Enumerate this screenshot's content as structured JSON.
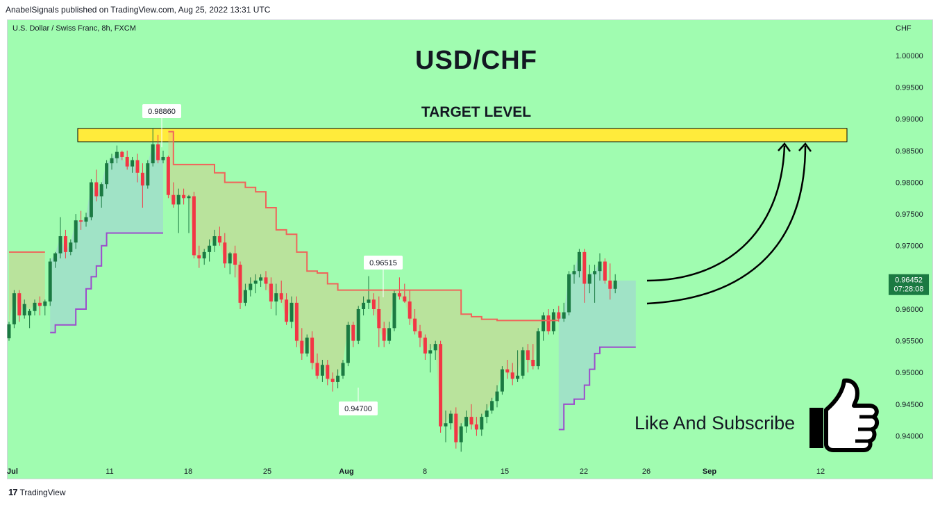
{
  "header": {
    "publisher_line": "AnabelSignals published on TradingView.com, Aug 25, 2022 13:31 UTC"
  },
  "symbol_line": "U.S. Dollar / Swiss Franc, 8h, FXCM",
  "currency": "CHF",
  "footer": {
    "brand": "TradingView"
  },
  "annotations": {
    "like_subscribe": "Like And Subscribe",
    "thumbs_icon": "thumbs-up-icon",
    "high_callout": "0.98860",
    "mid_callout": "0.96515",
    "low_callout": "0.94700"
  },
  "colors": {
    "up": "#1b7a42",
    "down": "#f23645",
    "background": "#a0fcb0",
    "target_zone": "#ffeb3b",
    "upper_line": "#f0645a",
    "lower_line": "#9c4dcc"
  },
  "chart_data": {
    "type": "candlestick",
    "title": "USD/CHF",
    "subtitle": "TARGET LEVEL",
    "yrange": [
      0.936,
      1.0035
    ],
    "yticks": [
      "1.00000",
      "0.99500",
      "0.99000",
      "0.98500",
      "0.98000",
      "0.97500",
      "0.97000",
      "0.96500",
      "0.96000",
      "0.95500",
      "0.95000",
      "0.94500",
      "0.94000"
    ],
    "xticks": [
      "Jul",
      "11",
      "18",
      "25",
      "Aug",
      "8",
      "15",
      "22",
      "26",
      "Sep",
      "12"
    ],
    "last_price": "0.96452",
    "countdown": "07:28:08",
    "target_zone": [
      0.9864,
      0.9885
    ],
    "candles": [
      [
        0.9554,
        0.958,
        0.955,
        0.9576
      ],
      [
        0.9576,
        0.963,
        0.957,
        0.9625
      ],
      [
        0.9625,
        0.963,
        0.958,
        0.959
      ],
      [
        0.959,
        0.9615,
        0.9585,
        0.9608
      ],
      [
        0.959,
        0.96,
        0.957,
        0.9597
      ],
      [
        0.9597,
        0.9615,
        0.959,
        0.961
      ],
      [
        0.961,
        0.962,
        0.959,
        0.9605
      ],
      [
        0.9605,
        0.9615,
        0.959,
        0.9612
      ],
      [
        0.9612,
        0.968,
        0.9605,
        0.9675
      ],
      [
        0.9675,
        0.969,
        0.9665,
        0.9688
      ],
      [
        0.9688,
        0.9745,
        0.968,
        0.9715
      ],
      [
        0.9715,
        0.9725,
        0.968,
        0.969
      ],
      [
        0.969,
        0.971,
        0.9685,
        0.9705
      ],
      [
        0.9705,
        0.975,
        0.9695,
        0.974
      ],
      [
        0.974,
        0.9755,
        0.9725,
        0.9738
      ],
      [
        0.9738,
        0.9752,
        0.973,
        0.9745
      ],
      [
        0.9745,
        0.9805,
        0.974,
        0.98
      ],
      [
        0.98,
        0.982,
        0.977,
        0.9778
      ],
      [
        0.9778,
        0.98,
        0.976,
        0.9797
      ],
      [
        0.9797,
        0.9835,
        0.979,
        0.983
      ],
      [
        0.983,
        0.9845,
        0.982,
        0.9838
      ],
      [
        0.9838,
        0.9858,
        0.983,
        0.9848
      ],
      [
        0.9848,
        0.985,
        0.9835,
        0.984
      ],
      [
        0.984,
        0.985,
        0.982,
        0.9825
      ],
      [
        0.9825,
        0.984,
        0.9815,
        0.9835
      ],
      [
        0.9835,
        0.9845,
        0.98,
        0.9815
      ],
      [
        0.9815,
        0.983,
        0.976,
        0.9795
      ],
      [
        0.9795,
        0.9835,
        0.979,
        0.983
      ],
      [
        0.983,
        0.9886,
        0.9825,
        0.986
      ],
      [
        0.986,
        0.9875,
        0.983,
        0.9835
      ],
      [
        0.9835,
        0.985,
        0.983,
        0.984
      ],
      [
        0.984,
        0.9842,
        0.9775,
        0.978
      ],
      [
        0.978,
        0.98,
        0.976,
        0.9765
      ],
      [
        0.9765,
        0.979,
        0.972,
        0.978
      ],
      [
        0.978,
        0.979,
        0.9765,
        0.9775
      ],
      [
        0.9775,
        0.978,
        0.972,
        0.9778
      ],
      [
        0.9778,
        0.9785,
        0.968,
        0.9685
      ],
      [
        0.9685,
        0.97,
        0.9665,
        0.968
      ],
      [
        0.968,
        0.9695,
        0.967,
        0.969
      ],
      [
        0.969,
        0.971,
        0.9675,
        0.97
      ],
      [
        0.97,
        0.9725,
        0.969,
        0.9715
      ],
      [
        0.9715,
        0.973,
        0.97,
        0.9705
      ],
      [
        0.9705,
        0.972,
        0.9665,
        0.9672
      ],
      [
        0.9672,
        0.969,
        0.9655,
        0.9688
      ],
      [
        0.9688,
        0.97,
        0.965,
        0.967
      ],
      [
        0.967,
        0.9675,
        0.96,
        0.961
      ],
      [
        0.961,
        0.964,
        0.9605,
        0.963
      ],
      [
        0.963,
        0.965,
        0.962,
        0.964
      ],
      [
        0.964,
        0.9655,
        0.9625,
        0.9645
      ],
      [
        0.9645,
        0.9655,
        0.9635,
        0.965
      ],
      [
        0.965,
        0.966,
        0.963,
        0.964
      ],
      [
        0.964,
        0.965,
        0.96,
        0.9612
      ],
      [
        0.9612,
        0.964,
        0.959,
        0.9625
      ],
      [
        0.9625,
        0.9645,
        0.961,
        0.9615
      ],
      [
        0.9615,
        0.9625,
        0.9575,
        0.958
      ],
      [
        0.958,
        0.962,
        0.957,
        0.961
      ],
      [
        0.961,
        0.962,
        0.954,
        0.955
      ],
      [
        0.955,
        0.957,
        0.952,
        0.953
      ],
      [
        0.953,
        0.956,
        0.9525,
        0.9555
      ],
      [
        0.9555,
        0.9565,
        0.9505,
        0.9515
      ],
      [
        0.9515,
        0.953,
        0.949,
        0.9495
      ],
      [
        0.9495,
        0.952,
        0.9485,
        0.9512
      ],
      [
        0.9512,
        0.952,
        0.948,
        0.949
      ],
      [
        0.949,
        0.95,
        0.947,
        0.9485
      ],
      [
        0.9485,
        0.9505,
        0.9475,
        0.9495
      ],
      [
        0.9495,
        0.952,
        0.949,
        0.9515
      ],
      [
        0.9515,
        0.958,
        0.951,
        0.9575
      ],
      [
        0.9575,
        0.958,
        0.954,
        0.955
      ],
      [
        0.955,
        0.9605,
        0.9545,
        0.96
      ],
      [
        0.96,
        0.962,
        0.959,
        0.961
      ],
      [
        0.961,
        0.9652,
        0.96,
        0.9615
      ],
      [
        0.9615,
        0.9625,
        0.959,
        0.96
      ],
      [
        0.96,
        0.962,
        0.954,
        0.957
      ],
      [
        0.957,
        0.958,
        0.954,
        0.955
      ],
      [
        0.955,
        0.958,
        0.9545,
        0.957
      ],
      [
        0.957,
        0.963,
        0.9565,
        0.9625
      ],
      [
        0.9625,
        0.965,
        0.9615,
        0.962
      ],
      [
        0.962,
        0.964,
        0.961,
        0.9612
      ],
      [
        0.9612,
        0.963,
        0.9575,
        0.9585
      ],
      [
        0.9585,
        0.96,
        0.956,
        0.9565
      ],
      [
        0.9565,
        0.9575,
        0.954,
        0.9555
      ],
      [
        0.9555,
        0.956,
        0.952,
        0.953
      ],
      [
        0.953,
        0.9545,
        0.95,
        0.9535
      ],
      [
        0.9535,
        0.955,
        0.952,
        0.9545
      ],
      [
        0.9545,
        0.955,
        0.9405,
        0.9415
      ],
      [
        0.9415,
        0.944,
        0.939,
        0.942
      ],
      [
        0.942,
        0.944,
        0.941,
        0.9435
      ],
      [
        0.9435,
        0.9445,
        0.938,
        0.939
      ],
      [
        0.939,
        0.942,
        0.9375,
        0.9415
      ],
      [
        0.9415,
        0.944,
        0.9405,
        0.943
      ],
      [
        0.943,
        0.945,
        0.941,
        0.9418
      ],
      [
        0.9418,
        0.943,
        0.94,
        0.941
      ],
      [
        0.941,
        0.9435,
        0.94,
        0.943
      ],
      [
        0.943,
        0.945,
        0.942,
        0.944
      ],
      [
        0.944,
        0.946,
        0.9435,
        0.9455
      ],
      [
        0.9455,
        0.948,
        0.9445,
        0.947
      ],
      [
        0.947,
        0.951,
        0.9465,
        0.9505
      ],
      [
        0.9505,
        0.952,
        0.949,
        0.95
      ],
      [
        0.95,
        0.9515,
        0.948,
        0.949
      ],
      [
        0.949,
        0.9535,
        0.9485,
        0.9495
      ],
      [
        0.9495,
        0.954,
        0.949,
        0.9535
      ],
      [
        0.9535,
        0.9545,
        0.95,
        0.952
      ],
      [
        0.952,
        0.9545,
        0.9505,
        0.951
      ],
      [
        0.951,
        0.957,
        0.9505,
        0.9565
      ],
      [
        0.9565,
        0.9595,
        0.955,
        0.959
      ],
      [
        0.959,
        0.96,
        0.956,
        0.9565
      ],
      [
        0.9565,
        0.96,
        0.956,
        0.9595
      ],
      [
        0.9595,
        0.9605,
        0.958,
        0.9585
      ],
      [
        0.9585,
        0.961,
        0.958,
        0.9595
      ],
      [
        0.9595,
        0.966,
        0.959,
        0.9655
      ],
      [
        0.9655,
        0.967,
        0.964,
        0.966
      ],
      [
        0.966,
        0.9695,
        0.965,
        0.969
      ],
      [
        0.969,
        0.9695,
        0.961,
        0.964
      ],
      [
        0.964,
        0.967,
        0.9625,
        0.9655
      ],
      [
        0.9655,
        0.967,
        0.961,
        0.966
      ],
      [
        0.966,
        0.9688,
        0.9645,
        0.9675
      ],
      [
        0.9675,
        0.968,
        0.964,
        0.9645
      ],
      [
        0.9645,
        0.9672,
        0.9615,
        0.9632
      ],
      [
        0.9632,
        0.9655,
        0.9625,
        0.9645
      ]
    ],
    "upper_line": [
      [
        0,
        0.969
      ],
      [
        7,
        0.969
      ],
      [
        8,
        null
      ],
      [
        31,
        null
      ],
      [
        31,
        0.988
      ],
      [
        32,
        0.9828
      ],
      [
        38,
        0.9828
      ],
      [
        40,
        0.9815
      ],
      [
        42,
        0.98
      ],
      [
        44,
        0.98
      ],
      [
        46,
        0.9792
      ],
      [
        48,
        0.9785
      ],
      [
        50,
        0.976
      ],
      [
        52,
        0.9725
      ],
      [
        54,
        0.9718
      ],
      [
        56,
        0.969
      ],
      [
        58,
        0.966
      ],
      [
        60,
        0.9657
      ],
      [
        62,
        0.964
      ],
      [
        64,
        0.963
      ],
      [
        69,
        0.963
      ],
      [
        87,
        0.963
      ],
      [
        88,
        0.9592
      ],
      [
        90,
        0.9588
      ],
      [
        92,
        0.9584
      ],
      [
        95,
        0.9582
      ],
      [
        98,
        0.9582
      ],
      [
        107,
        0.9582
      ]
    ],
    "lower_line": [
      [
        8,
        0.9563
      ],
      [
        9,
        0.9575
      ],
      [
        11,
        0.9575
      ],
      [
        13,
        0.96
      ],
      [
        15,
        0.9632
      ],
      [
        16,
        0.9651
      ],
      [
        17,
        0.9668
      ],
      [
        18,
        0.97
      ],
      [
        19,
        0.972
      ],
      [
        30,
        0.972
      ],
      [
        31,
        null
      ],
      [
        107,
        null
      ],
      [
        107,
        0.941
      ],
      [
        108,
        0.945
      ],
      [
        110,
        0.9458
      ],
      [
        112,
        0.948
      ],
      [
        113,
        0.9505
      ],
      [
        114,
        0.953
      ],
      [
        115,
        0.954
      ],
      [
        118,
        0.954
      ],
      [
        122,
        0.954
      ]
    ]
  }
}
